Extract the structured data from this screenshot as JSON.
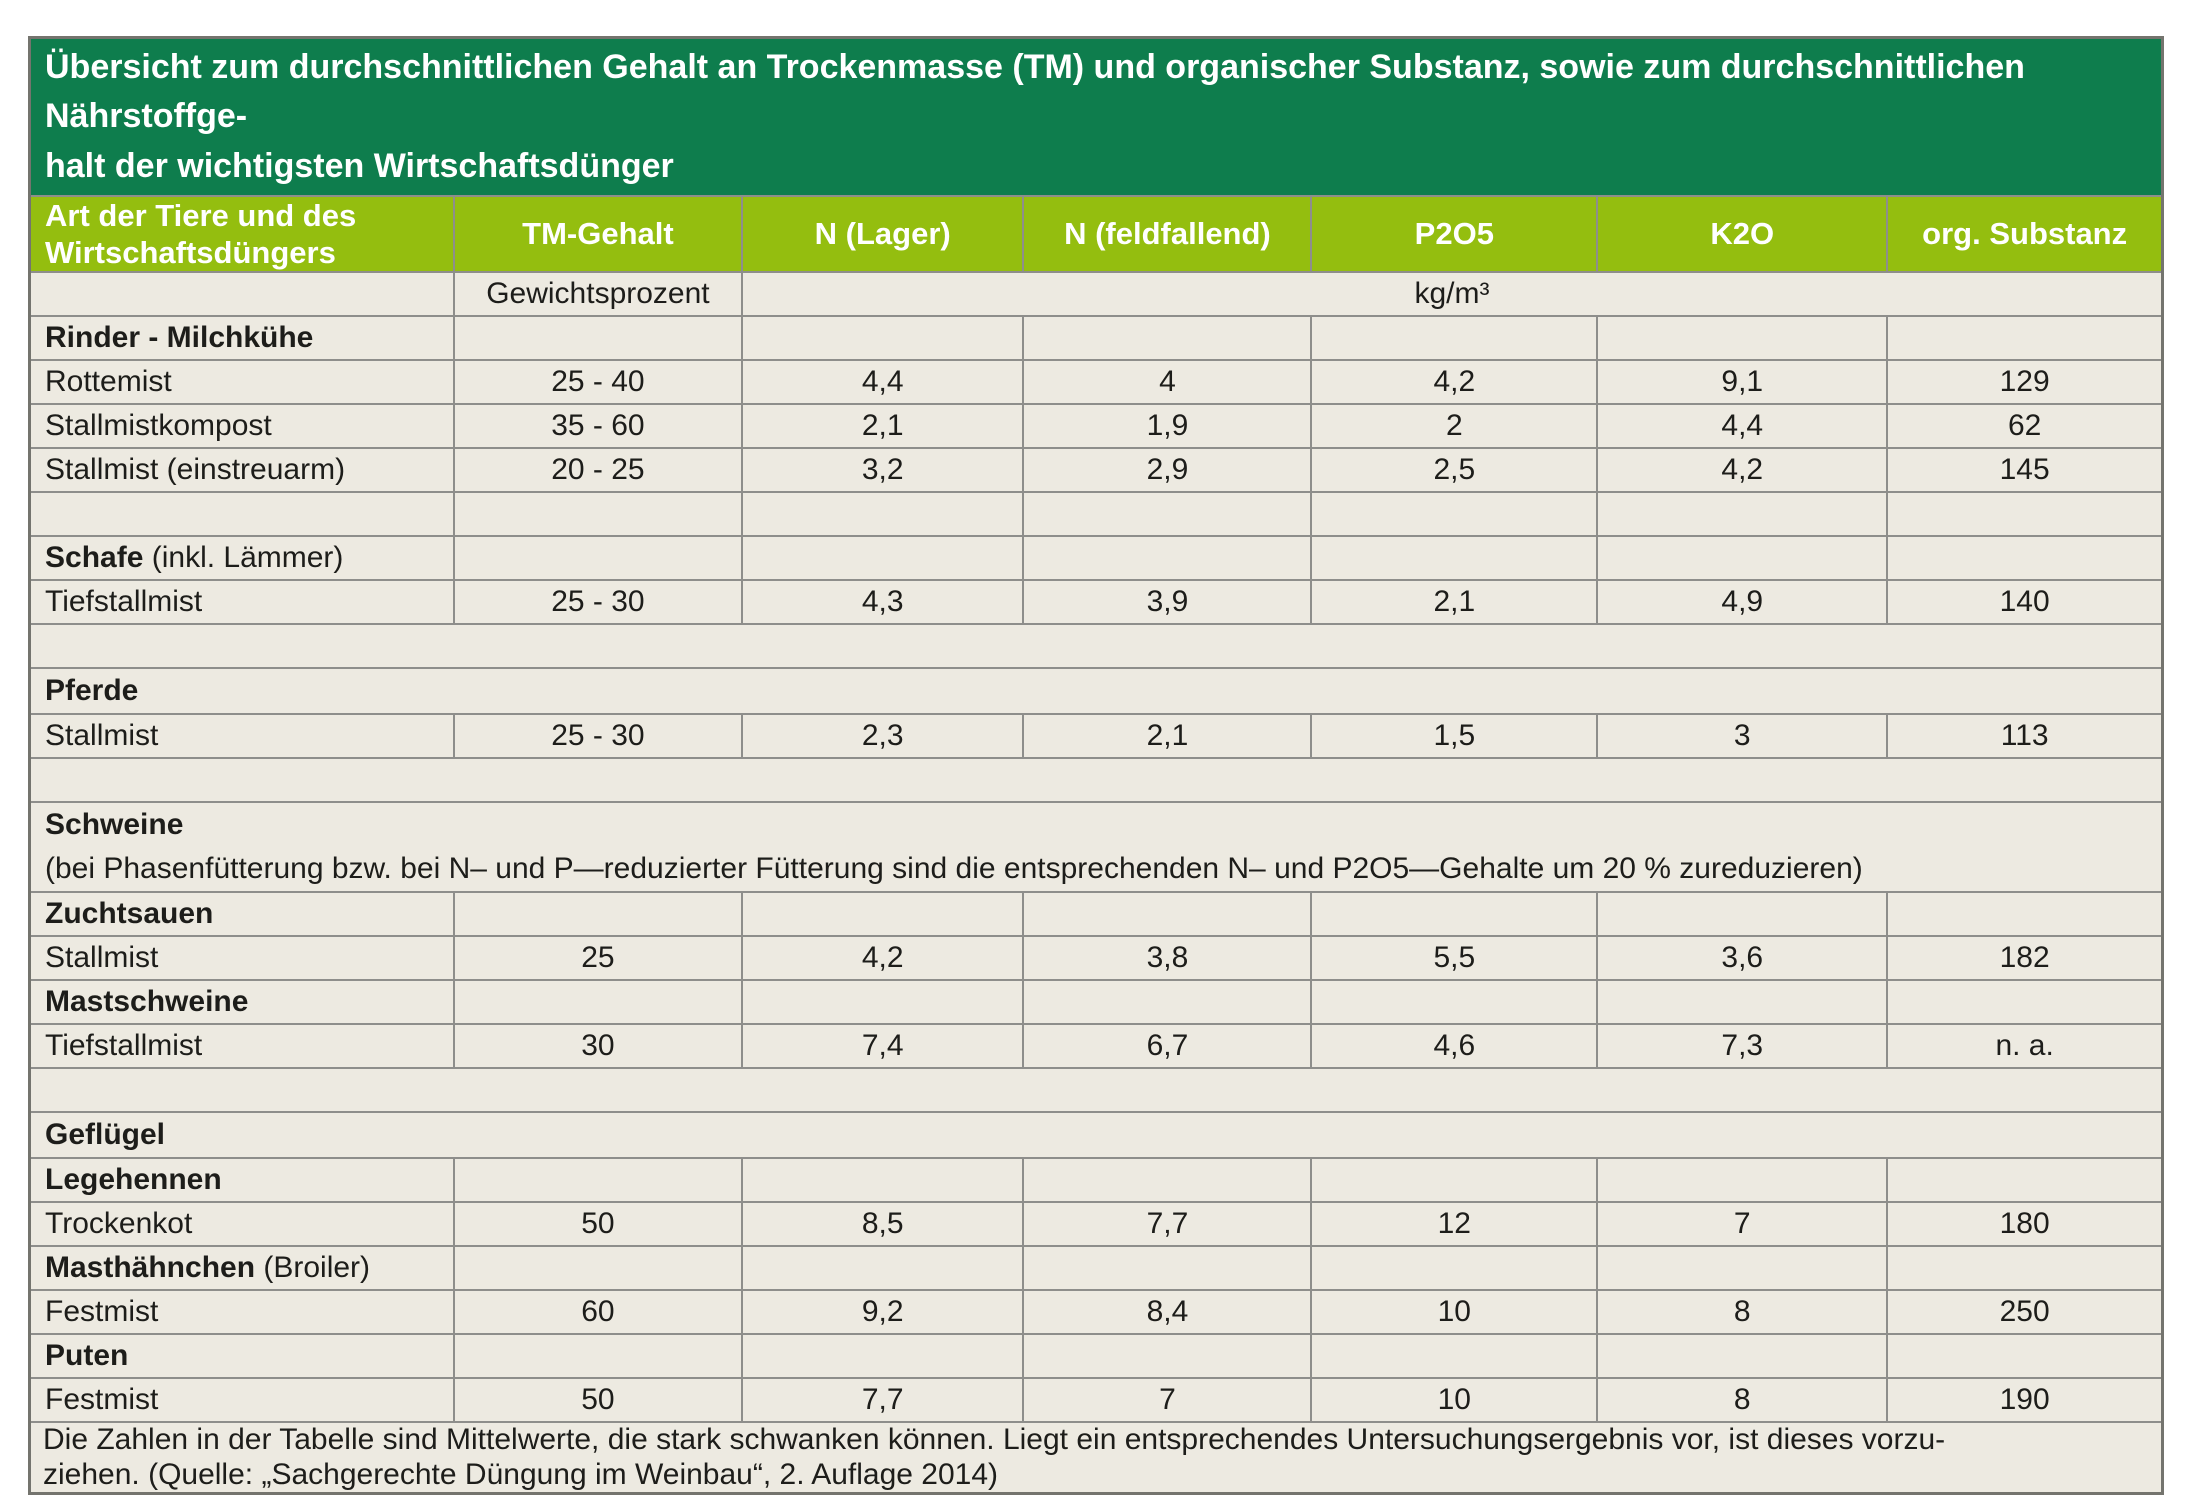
{
  "title": {
    "line1": "Übersicht zum durchschnittlichen Gehalt an Trockenmasse (TM) und organischer Substanz, sowie zum durchschnittlichen Nährstoffge-",
    "line2": "halt der wichtigsten Wirtschaftsdünger"
  },
  "colors": {
    "title_bar_green": "#0e7d4d",
    "header_green": "#94be0f",
    "body_beige": "#edeae1",
    "grid_gray": "#8e8e8b"
  },
  "columns": [
    "Art der Tiere und des Wirtschaftsdüngers",
    "TM-Gehalt",
    "N (Lager)",
    "N (feldfallend)",
    "P2O5",
    "K2O",
    "org. Substanz"
  ],
  "units": {
    "weight": "Gewichtsprozent",
    "volume": "kg/m³"
  },
  "table": {
    "rows": [
      {
        "type": "section",
        "bold": "Rinder - Milchkühe",
        "normal": ""
      },
      {
        "type": "data",
        "label": "Rottemist",
        "values": [
          "25 - 40",
          "4,4",
          "4",
          "4,2",
          "9,1",
          "129"
        ]
      },
      {
        "type": "data",
        "label": "Stallmistkompost",
        "values": [
          "35 - 60",
          "2,1",
          "1,9",
          "2",
          "4,4",
          "62"
        ]
      },
      {
        "type": "data",
        "label": "Stallmist (einstreuarm)",
        "values": [
          "20 - 25",
          "3,2",
          "2,9",
          "2,5",
          "4,2",
          "145"
        ]
      },
      {
        "type": "empty"
      },
      {
        "type": "section",
        "bold": "Schafe",
        "normal": " (inkl. Lämmer)"
      },
      {
        "type": "data",
        "label": "Tiefstallmist",
        "values": [
          "25 - 30",
          "4,3",
          "3,9",
          "2,1",
          "4,9",
          "140"
        ]
      },
      {
        "type": "gap"
      },
      {
        "type": "group",
        "bold": "Pferde",
        "note": ""
      },
      {
        "type": "data",
        "label": "Stallmist",
        "values": [
          "25 - 30",
          "2,3",
          "2,1",
          "1,5",
          "3",
          "113"
        ]
      },
      {
        "type": "gap"
      },
      {
        "type": "group",
        "bold": "Schweine",
        "note": "(bei Phasenfütterung bzw. bei N– und P—reduzierter Fütterung sind die entsprechenden N– und P2O5—Gehalte um 20 % zureduzieren)"
      },
      {
        "type": "section",
        "bold": "Zuchtsauen",
        "normal": ""
      },
      {
        "type": "data",
        "label": "Stallmist",
        "values": [
          "25",
          "4,2",
          "3,8",
          "5,5",
          "3,6",
          "182"
        ]
      },
      {
        "type": "section",
        "bold": "Mastschweine",
        "normal": ""
      },
      {
        "type": "data",
        "label": "Tiefstallmist",
        "values": [
          "30",
          "7,4",
          "6,7",
          "4,6",
          "7,3",
          "n. a."
        ]
      },
      {
        "type": "gap"
      },
      {
        "type": "group",
        "bold": "Geflügel",
        "note": ""
      },
      {
        "type": "section",
        "bold": "Legehennen",
        "normal": ""
      },
      {
        "type": "data",
        "label": "Trockenkot",
        "values": [
          "50",
          "8,5",
          "7,7",
          "12",
          "7",
          "180"
        ]
      },
      {
        "type": "section",
        "bold": "Masthähnchen",
        "normal": " (Broiler)"
      },
      {
        "type": "data",
        "label": "Festmist",
        "values": [
          "60",
          "9,2",
          "8,4",
          "10",
          "8",
          "250"
        ]
      },
      {
        "type": "section",
        "bold": "Puten",
        "normal": ""
      },
      {
        "type": "data",
        "label": "Festmist",
        "values": [
          "50",
          "7,7",
          "7",
          "10",
          "8",
          "190"
        ]
      }
    ]
  },
  "footnote": {
    "line1": "Die Zahlen in der Tabelle sind Mittelwerte, die stark schwanken können. Liegt ein entsprechendes Untersuchungsergebnis vor, ist dieses vorzu-",
    "line2": "ziehen. (Quelle: „Sachgerechte Düngung im Weinbau“, 2. Auflage 2014)"
  }
}
